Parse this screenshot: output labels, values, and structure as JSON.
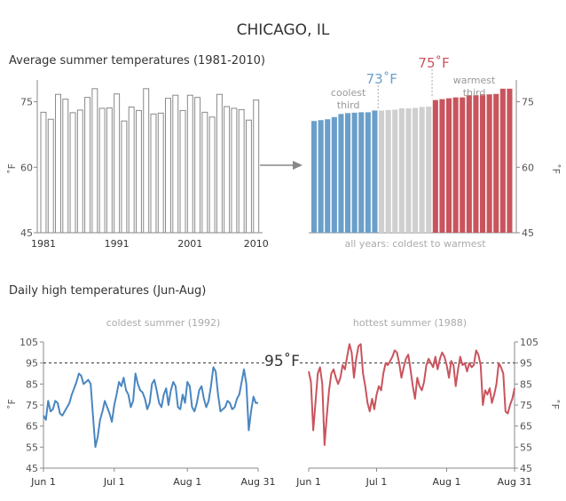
{
  "title": "CHICAGO, IL",
  "reference_95": "95˚F",
  "chart_data": [
    {
      "type": "bar",
      "title": "Average summer temperatures (1981-2010)",
      "ylabel": "˚F",
      "ylim": [
        45,
        80
      ],
      "yticks": [
        "45",
        "60",
        "75"
      ],
      "xtick_labels": [
        "1981",
        "1991",
        "2001",
        "2010"
      ],
      "categories": [
        "1981",
        "1982",
        "1983",
        "1984",
        "1985",
        "1986",
        "1987",
        "1988",
        "1989",
        "1990",
        "1991",
        "1992",
        "1993",
        "1994",
        "1995",
        "1996",
        "1997",
        "1998",
        "1999",
        "2000",
        "2001",
        "2002",
        "2003",
        "2004",
        "2005",
        "2006",
        "2007",
        "2008",
        "2009",
        "2010"
      ],
      "values": [
        72.6,
        71.0,
        76.7,
        75.6,
        72.5,
        73.1,
        76.0,
        78.0,
        73.5,
        73.6,
        76.8,
        70.6,
        73.8,
        73.0,
        78.0,
        72.2,
        72.4,
        75.8,
        76.5,
        73.0,
        76.5,
        76.0,
        72.6,
        71.5,
        76.7,
        73.9,
        73.5,
        73.2,
        70.8,
        75.4
      ],
      "fill": "#ffffff",
      "stroke": "#888888",
      "grid": false
    },
    {
      "type": "bar",
      "xlabel": "all years: coldest to warmest",
      "ylabel": "˚F",
      "ylim": [
        45,
        80
      ],
      "yticks": [
        "45",
        "60",
        "75"
      ],
      "values": [
        70.6,
        70.8,
        71.0,
        71.5,
        72.2,
        72.4,
        72.5,
        72.6,
        72.6,
        73.0,
        73.0,
        73.1,
        73.2,
        73.5,
        73.5,
        73.6,
        73.8,
        73.9,
        75.4,
        75.6,
        75.8,
        76.0,
        76.0,
        76.5,
        76.5,
        76.7,
        76.7,
        76.8,
        78.0,
        78.0
      ],
      "groups": [
        {
          "label_lines": [
            "coolest",
            "third"
          ],
          "threshold_label": "73˚F",
          "count": 10,
          "color": "#6a9fca"
        },
        {
          "label_lines": [],
          "threshold_label": "",
          "count": 8,
          "color": "#cfcfcf"
        },
        {
          "label_lines": [
            "warmest",
            "third"
          ],
          "threshold_label": "75˚F",
          "count": 12,
          "color": "#c9545d"
        }
      ],
      "grid": false
    },
    {
      "type": "line",
      "section_title": "Daily high temperatures (Jun-Aug)",
      "title": "coldest summer (1992)",
      "ylabel": "˚F",
      "ylim": [
        45,
        105
      ],
      "yticks": [
        "45",
        "55",
        "65",
        "75",
        "85",
        "95",
        "105"
      ],
      "xtick_labels": [
        "Jun 1",
        "Jul 1",
        "Aug 1",
        "Aug 31"
      ],
      "xtick_days": [
        0,
        30,
        61,
        91
      ],
      "reference_line": 95,
      "color": "#4a86c0",
      "values": [
        70,
        68,
        77,
        72,
        73,
        77,
        76,
        71,
        70,
        72,
        74,
        76,
        80,
        83,
        86,
        90,
        89,
        85,
        86,
        87,
        85,
        70,
        55,
        60,
        68,
        72,
        77,
        74,
        71,
        67,
        75,
        80,
        86,
        84,
        88,
        82,
        80,
        74,
        77,
        90,
        85,
        82,
        81,
        78,
        73,
        76,
        85,
        87,
        82,
        76,
        74,
        80,
        83,
        75,
        82,
        86,
        84,
        74,
        73,
        80,
        76,
        86,
        84,
        74,
        72,
        76,
        82,
        84,
        78,
        74,
        77,
        84,
        93,
        91,
        80,
        72,
        73,
        74,
        77,
        76,
        73,
        74,
        78,
        80,
        86,
        92,
        85,
        63,
        72,
        79,
        76,
        76
      ]
    },
    {
      "type": "line",
      "title": "hottest summer (1988)",
      "ylabel": "˚F",
      "ylim": [
        45,
        105
      ],
      "yticks": [
        "45",
        "55",
        "65",
        "75",
        "85",
        "95",
        "105"
      ],
      "xtick_labels": [
        "Jun 1",
        "Jul 1",
        "Aug 1",
        "Aug 31"
      ],
      "xtick_days": [
        0,
        30,
        61,
        91
      ],
      "reference_line": 95,
      "color": "#c9545d",
      "values": [
        91,
        86,
        63,
        76,
        90,
        93,
        85,
        56,
        70,
        82,
        90,
        92,
        88,
        85,
        88,
        94,
        92,
        98,
        104,
        100,
        88,
        97,
        103,
        104,
        90,
        84,
        76,
        72,
        78,
        73,
        80,
        84,
        82,
        90,
        95,
        94,
        96,
        98,
        101,
        100,
        95,
        88,
        93,
        97,
        99,
        92,
        84,
        78,
        88,
        84,
        82,
        86,
        94,
        97,
        95,
        93,
        98,
        92,
        97,
        100,
        98,
        94,
        88,
        96,
        94,
        84,
        92,
        98,
        94,
        95,
        91,
        95,
        93,
        94,
        101,
        99,
        94,
        75,
        82,
        80,
        83,
        76,
        80,
        85,
        95,
        93,
        90,
        72,
        71,
        75,
        78,
        83
      ]
    }
  ]
}
